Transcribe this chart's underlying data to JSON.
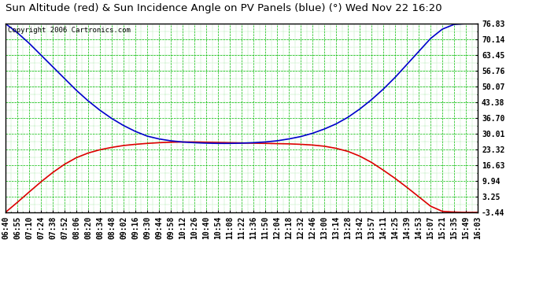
{
  "title": "Sun Altitude (red) & Sun Incidence Angle on PV Panels (blue) (°) Wed Nov 22 16:20",
  "copyright": "Copyright 2006 Cartronics.com",
  "bg_color": "#ffffff",
  "plot_bg_color": "#ffffff",
  "grid_color": "#00bb00",
  "x_labels": [
    "06:40",
    "06:55",
    "07:10",
    "07:24",
    "07:38",
    "07:52",
    "08:06",
    "08:20",
    "08:34",
    "08:48",
    "09:02",
    "09:16",
    "09:30",
    "09:44",
    "09:58",
    "10:12",
    "10:26",
    "10:40",
    "10:54",
    "11:08",
    "11:22",
    "11:36",
    "11:50",
    "12:04",
    "12:18",
    "12:32",
    "12:46",
    "13:00",
    "13:14",
    "13:28",
    "13:42",
    "13:57",
    "14:11",
    "14:25",
    "14:39",
    "14:53",
    "15:07",
    "15:21",
    "15:35",
    "15:49",
    "16:03"
  ],
  "yticks": [
    -3.44,
    3.25,
    9.94,
    16.63,
    23.32,
    30.01,
    36.7,
    43.38,
    50.07,
    56.76,
    63.45,
    70.14,
    76.83
  ],
  "ymin": -3.44,
  "ymax": 76.83,
  "red_data": [
    -3.44,
    0.8,
    5.2,
    9.5,
    13.5,
    17.0,
    19.8,
    21.8,
    23.2,
    24.2,
    25.0,
    25.5,
    25.9,
    26.2,
    26.4,
    26.5,
    26.5,
    26.4,
    26.3,
    26.2,
    26.1,
    26.0,
    25.9,
    25.8,
    25.7,
    25.5,
    25.2,
    24.7,
    23.8,
    22.5,
    20.5,
    17.8,
    14.5,
    11.0,
    7.2,
    3.2,
    -0.8,
    -3.0,
    -3.3,
    -3.44,
    -3.44
  ],
  "blue_data": [
    76.83,
    73.0,
    68.5,
    63.5,
    58.5,
    53.5,
    48.5,
    44.0,
    40.0,
    36.5,
    33.5,
    31.0,
    29.0,
    27.8,
    27.0,
    26.5,
    26.2,
    26.0,
    25.9,
    25.9,
    26.0,
    26.2,
    26.5,
    27.0,
    27.8,
    28.8,
    30.2,
    32.0,
    34.2,
    37.0,
    40.5,
    44.5,
    49.0,
    54.0,
    59.5,
    65.0,
    70.5,
    74.5,
    76.5,
    76.83,
    76.83
  ],
  "red_color": "#dd0000",
  "blue_color": "#0000cc",
  "line_width": 1.2,
  "title_fontsize": 9.5,
  "tick_fontsize": 7,
  "copyright_fontsize": 6.5,
  "figwidth": 6.9,
  "figheight": 3.75,
  "dpi": 100
}
